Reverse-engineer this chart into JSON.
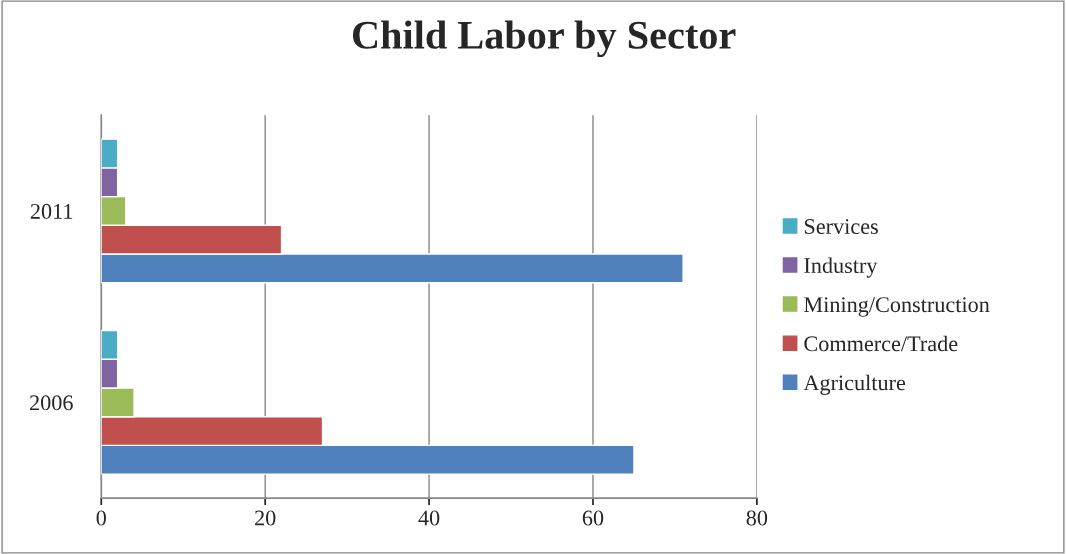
{
  "chart_data": {
    "type": "bar",
    "orientation": "horizontal",
    "title": "Child Labor by Sector",
    "categories": [
      "2011",
      "2006"
    ],
    "series": [
      {
        "name": "Agriculture",
        "color": "#4f81bd",
        "values": [
          71,
          65
        ]
      },
      {
        "name": "Commerce/Trade",
        "color": "#c0504d",
        "values": [
          22,
          27
        ]
      },
      {
        "name": "Mining/Construction",
        "color": "#9bbb59",
        "values": [
          3,
          4
        ]
      },
      {
        "name": "Industry",
        "color": "#8064a2",
        "values": [
          2,
          2
        ]
      },
      {
        "name": "Services",
        "color": "#4bacc6",
        "values": [
          2,
          2
        ]
      }
    ],
    "xlim": [
      0,
      80
    ],
    "xticks": [
      0,
      20,
      40,
      60,
      80
    ],
    "grid": "x",
    "legend": "right"
  }
}
